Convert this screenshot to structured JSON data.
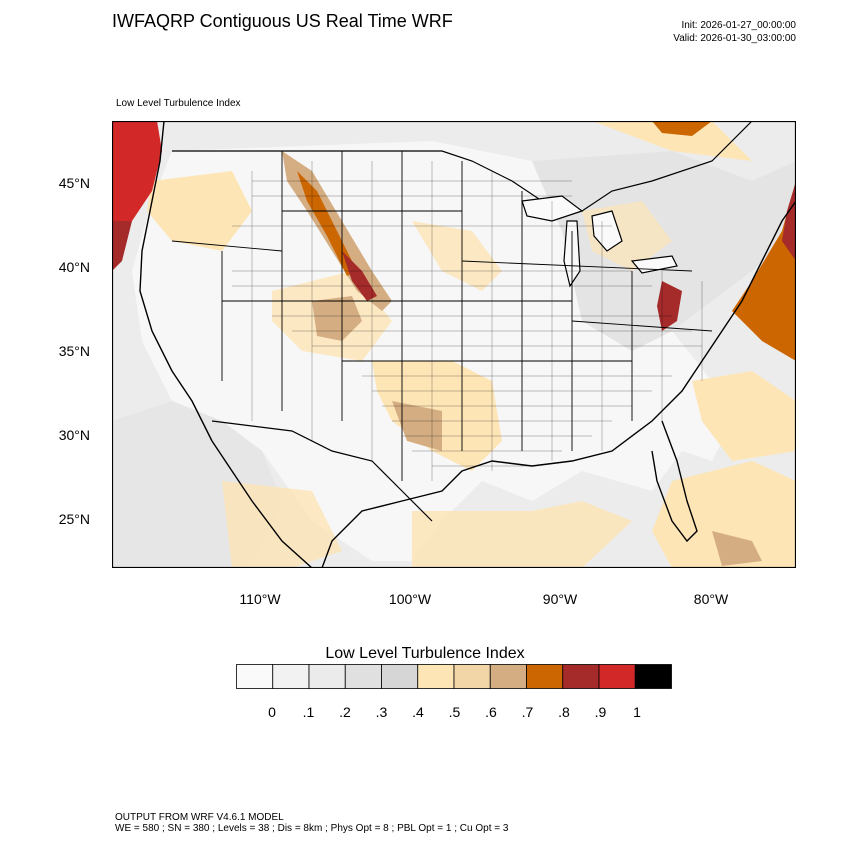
{
  "header": {
    "title": "IWFAQRP Contiguous US Real Time WRF",
    "init": "Init: 2026-01-27_00:00:00",
    "valid": "Valid: 2026-01-30_03:00:00",
    "field_label": "Low Level Turbulence Index"
  },
  "map": {
    "lat_labels": [
      "45°N",
      "40°N",
      "35°N",
      "30°N",
      "25°N"
    ],
    "lon_labels": [
      "110°W",
      "100°W",
      "90°W",
      "80°W"
    ]
  },
  "colorbar": {
    "title": "Low Level Turbulence Index",
    "labels": [
      "0",
      ".1",
      ".2",
      ".3",
      ".4",
      ".5",
      ".6",
      ".7",
      ".8",
      ".9",
      "1"
    ],
    "colors": [
      "#fafafa",
      "#f2f2f2",
      "#ebebeb",
      "#e0e0e0",
      "#d6d6d6",
      "#fde5b6",
      "#f3d6a8",
      "#d4ae82",
      "#cc6600",
      "#a52a2a",
      "#d22828",
      "#000000"
    ]
  },
  "footer": {
    "line1": "OUTPUT FROM WRF V4.6.1 MODEL",
    "line2": "WE = 580 ; SN = 380 ; Levels = 38 ; Dis = 8km ; Phys Opt = 8 ; PBL Opt = 1 ; Cu Opt = 3"
  }
}
